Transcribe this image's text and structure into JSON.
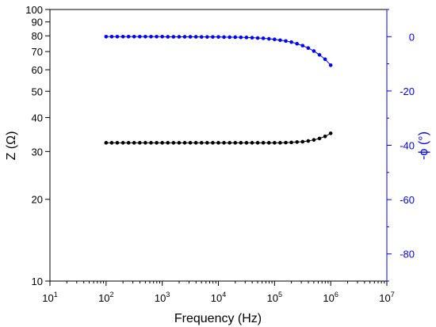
{
  "chart_data": {
    "type": "scatter",
    "title": "",
    "xlabel": "Frequency (Hz)",
    "ylabel_left": "Z (Ω)",
    "ylabel_right": "-ϕ (°)",
    "x_scale": "log",
    "y_left_scale": "log",
    "y_right_scale": "linear",
    "xlim": [
      10,
      10000000
    ],
    "ylim_left": [
      10,
      100
    ],
    "ylim_right": [
      -90,
      10
    ],
    "x_ticks": [
      {
        "base": "10",
        "exp": "1",
        "value": 10
      },
      {
        "base": "10",
        "exp": "2",
        "value": 100
      },
      {
        "base": "10",
        "exp": "3",
        "value": 1000
      },
      {
        "base": "10",
        "exp": "4",
        "value": 10000
      },
      {
        "base": "10",
        "exp": "5",
        "value": 100000
      },
      {
        "base": "10",
        "exp": "6",
        "value": 1000000
      },
      {
        "base": "10",
        "exp": "7",
        "value": 10000000
      }
    ],
    "y_left_ticks": [
      "10",
      "20",
      "30",
      "40",
      "50",
      "60",
      "70",
      "80",
      "90",
      "100"
    ],
    "y_right_ticks": [
      "0",
      "-20",
      "-40",
      "-60",
      "-80"
    ],
    "grid": false,
    "colors": {
      "impedance": "#000000",
      "phase": "#0000ff",
      "axis": "#000000",
      "right_axis": "#0000ff"
    },
    "series": [
      {
        "axis": "left",
        "color": "#000000",
        "x": [
          100,
          126,
          158,
          200,
          251,
          316,
          398,
          501,
          631,
          794,
          1000,
          1259,
          1585,
          1995,
          2512,
          3162,
          3981,
          5012,
          6310,
          7943,
          10000,
          12589,
          15849,
          19953,
          25119,
          31623,
          39811,
          50119,
          63096,
          79433,
          100000,
          125893,
          158489,
          199526,
          251189,
          316228,
          398107,
          501187,
          630957,
          794328,
          1000000
        ],
        "values": [
          32.3,
          32.3,
          32.3,
          32.3,
          32.3,
          32.3,
          32.3,
          32.3,
          32.3,
          32.3,
          32.3,
          32.3,
          32.3,
          32.3,
          32.3,
          32.3,
          32.3,
          32.3,
          32.3,
          32.3,
          32.3,
          32.3,
          32.3,
          32.3,
          32.3,
          32.3,
          32.3,
          32.3,
          32.3,
          32.3,
          32.3,
          32.3,
          32.35,
          32.4,
          32.5,
          32.6,
          32.8,
          33.1,
          33.5,
          34.1,
          35.0
        ]
      },
      {
        "axis": "right",
        "color": "#0000ff",
        "x": [
          100,
          126,
          158,
          200,
          251,
          316,
          398,
          501,
          631,
          794,
          1000,
          1259,
          1585,
          1995,
          2512,
          3162,
          3981,
          5012,
          6310,
          7943,
          10000,
          12589,
          15849,
          19953,
          25119,
          31623,
          39811,
          50119,
          63096,
          79433,
          100000,
          125893,
          158489,
          199526,
          251189,
          316228,
          398107,
          501187,
          630957,
          794328,
          1000000
        ],
        "values": [
          0,
          0,
          0,
          0,
          0,
          0,
          0,
          0,
          0,
          0,
          0,
          -0.05,
          -0.05,
          -0.05,
          -0.05,
          -0.05,
          -0.05,
          -0.1,
          -0.1,
          -0.1,
          -0.1,
          -0.15,
          -0.2,
          -0.2,
          -0.25,
          -0.3,
          -0.4,
          -0.5,
          -0.6,
          -0.8,
          -1.0,
          -1.3,
          -1.6,
          -2.0,
          -2.6,
          -3.3,
          -4.2,
          -5.3,
          -6.7,
          -8.3,
          -10.5
        ]
      }
    ]
  }
}
